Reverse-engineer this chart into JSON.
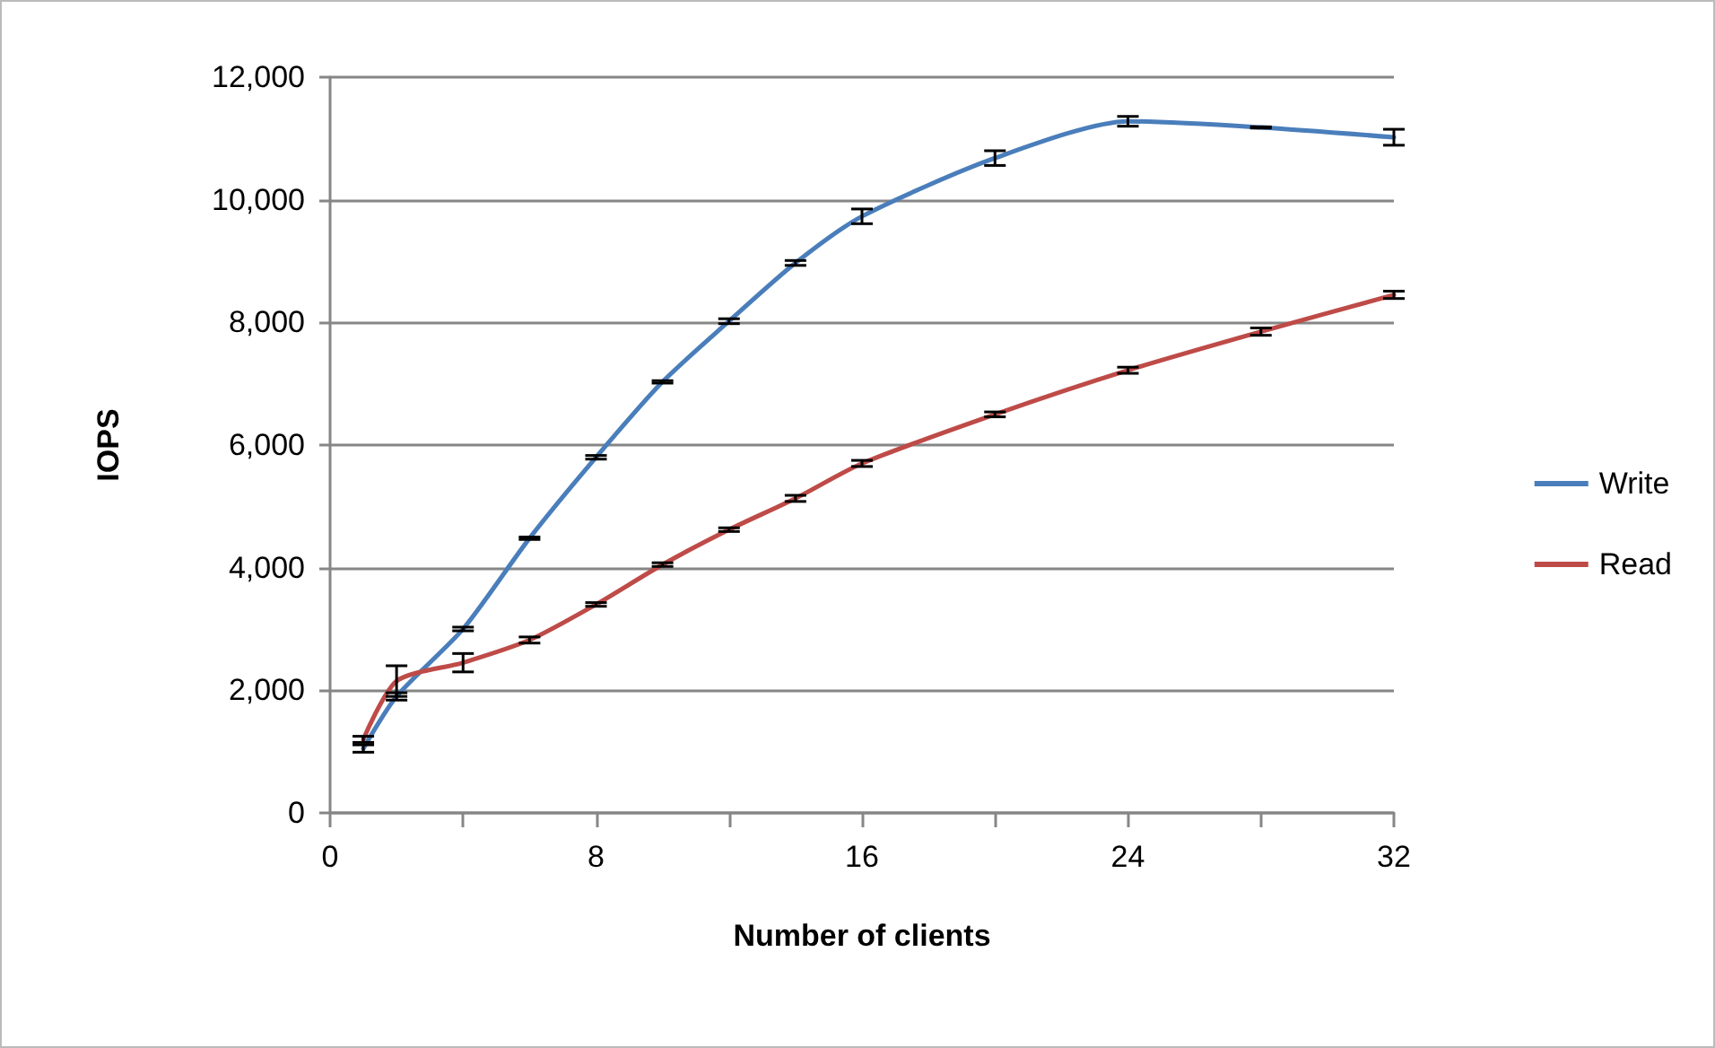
{
  "chart_data": {
    "type": "line",
    "xlabel": "Number of clients",
    "ylabel": "IOPS",
    "xlim": [
      0,
      32
    ],
    "xticks": [
      0,
      {
        "value": 4,
        "label": null
      },
      8,
      {
        "value": 12,
        "label": null
      },
      16,
      {
        "value": 20,
        "label": null
      },
      24,
      {
        "value": 28,
        "label": null
      },
      32
    ],
    "ylim": [
      0,
      12000
    ],
    "yticks": [
      {
        "value": 0,
        "label": "0"
      },
      {
        "value": 2000,
        "label": "2,000"
      },
      {
        "value": 4000,
        "label": "4,000"
      },
      {
        "value": 6000,
        "label": "6,000"
      },
      {
        "value": 8000,
        "label": "8,000"
      },
      {
        "value": 10000,
        "label": "10,000"
      },
      {
        "value": 12000,
        "label": "12,000"
      }
    ],
    "grid": "y",
    "legend": "right",
    "marker": "none",
    "line_style": "solid",
    "series": [
      {
        "name": "Write",
        "color": "#4a7ebb",
        "x": [
          1,
          2,
          4,
          6,
          8,
          10,
          12,
          14,
          16,
          20,
          24,
          28,
          32
        ],
        "values": [
          1050,
          1900,
          3000,
          4480,
          5800,
          7030,
          8020,
          8970,
          9730,
          10680,
          11280,
          11180,
          11020
        ],
        "errors": [
          60,
          60,
          30,
          20,
          30,
          20,
          40,
          40,
          120,
          120,
          80,
          10,
          130
        ]
      },
      {
        "name": "Read",
        "color": "#be4b48",
        "x": [
          1,
          2,
          4,
          6,
          8,
          10,
          12,
          14,
          16,
          20,
          24,
          28,
          32
        ],
        "values": [
          1200,
          2150,
          2450,
          2820,
          3400,
          4050,
          4620,
          5130,
          5700,
          6500,
          7220,
          7850,
          8450
        ],
        "errors": [
          50,
          250,
          150,
          50,
          30,
          30,
          30,
          50,
          50,
          40,
          50,
          60,
          60
        ]
      }
    ]
  }
}
